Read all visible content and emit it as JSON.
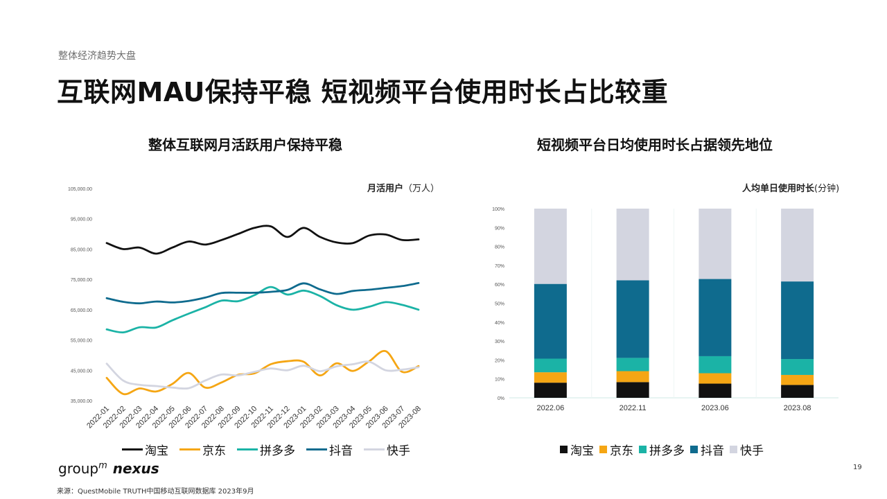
{
  "header": {
    "section_label": "整体经济趋势大盘",
    "title": "互联网MAU保持平稳 短视频平台使用时长占比较重"
  },
  "left_panel": {
    "chart_title": "整体互联网月活跃用户保持平稳",
    "unit_bold": "月活用户",
    "unit_suffix": "（万人）"
  },
  "right_panel": {
    "chart_title": "短视频平台日均使用时长占据领先地位",
    "unit_bold": "人均单日使用时长",
    "unit_suffix": "(分钟)"
  },
  "chart_data": [
    {
      "type": "line",
      "categories": [
        "2022-01",
        "2022-02",
        "2022-03",
        "2022-04",
        "2022-05",
        "2022-06",
        "2022-07",
        "2022-08",
        "2022-09",
        "2022-10",
        "2022-11",
        "2022-12",
        "2023-01",
        "2023-02",
        "2023-03",
        "2023-04",
        "2023-05",
        "2023-06",
        "2023-07",
        "2023-08"
      ],
      "y_tick_labels": [
        "35,000.00",
        "45,000.00",
        "55,000.00",
        "65,000.00",
        "75,000.00",
        "85,000.00",
        "95,000.00",
        "105,000.00"
      ],
      "ylim": [
        35000,
        105000
      ],
      "grid": false,
      "legend_position": "bottom",
      "series": [
        {
          "name": "淘宝",
          "color": "#111111",
          "values": [
            87000,
            85000,
            85500,
            83500,
            85500,
            87500,
            86500,
            88000,
            90000,
            92000,
            92500,
            89000,
            92000,
            89000,
            87200,
            87000,
            89500,
            89800,
            88000,
            88200
          ]
        },
        {
          "name": "京东",
          "color": "#f5a614",
          "values": [
            42500,
            37200,
            39000,
            38000,
            40500,
            44100,
            39300,
            41000,
            43500,
            44000,
            47000,
            48000,
            47800,
            43300,
            47300,
            44800,
            48000,
            51300,
            44500,
            46400
          ]
        },
        {
          "name": "拼多多",
          "color": "#1bb3a6",
          "values": [
            58500,
            57500,
            59200,
            59100,
            61500,
            63700,
            65800,
            68000,
            67800,
            69800,
            72500,
            70000,
            71300,
            69500,
            66500,
            65000,
            66000,
            67500,
            66600,
            65000
          ]
        },
        {
          "name": "抖音",
          "color": "#0f6b8e",
          "values": [
            68800,
            67600,
            67100,
            67700,
            67400,
            67900,
            69000,
            70500,
            70600,
            70600,
            70900,
            71500,
            73700,
            71700,
            70200,
            71200,
            71600,
            72200,
            72800,
            73800
          ]
        },
        {
          "name": "快手",
          "color": "#d3d5e0",
          "values": [
            47200,
            41600,
            40200,
            39800,
            39300,
            39100,
            41600,
            43600,
            43300,
            44500,
            45600,
            45000,
            46500,
            44700,
            46300,
            47000,
            47800,
            45000,
            45200,
            46000
          ]
        }
      ]
    },
    {
      "type": "bar",
      "stacked": true,
      "categories": [
        "2022.06",
        "2022.11",
        "2023.06",
        "2023.08"
      ],
      "y_tick_labels": [
        "0%",
        "10%",
        "20%",
        "30%",
        "40%",
        "50%",
        "60%",
        "70%",
        "80%",
        "90%",
        "100%"
      ],
      "ylim": [
        0,
        100
      ],
      "grid": false,
      "legend_position": "bottom",
      "series": [
        {
          "name": "淘宝",
          "color": "#111111",
          "values": [
            8,
            8.3,
            7.5,
            6.8
          ]
        },
        {
          "name": "京东",
          "color": "#f5a614",
          "values": [
            5.5,
            5.8,
            5.5,
            5.3
          ]
        },
        {
          "name": "拼多多",
          "color": "#1bb3a6",
          "values": [
            7.2,
            7,
            9,
            8.4
          ]
        },
        {
          "name": "抖音",
          "color": "#0f6b8e",
          "values": [
            39.5,
            41,
            40.8,
            41
          ]
        },
        {
          "name": "快手",
          "color": "#d3d5e0",
          "values": [
            39.8,
            37.9,
            37.2,
            38.5
          ]
        }
      ]
    }
  ],
  "footer": {
    "logo_group": "group",
    "logo_m": "m",
    "logo_nexus": "nexus",
    "page_number": "19",
    "source": "来源：QuestMobile TRUTH中国移动互联网数据库 2023年9月"
  }
}
